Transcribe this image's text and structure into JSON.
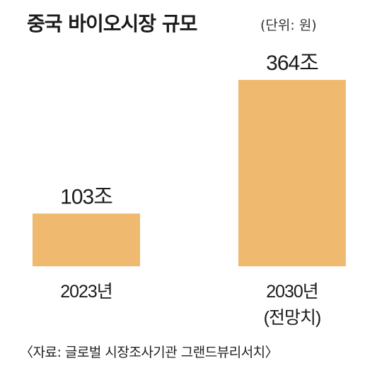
{
  "header": {
    "title": "중국 바이오시장 규모",
    "unit": "(단위: 원)"
  },
  "chart_data": {
    "type": "bar",
    "categories": [
      "2023년",
      "2030년"
    ],
    "category_notes": [
      "",
      "(전망치)"
    ],
    "values": [
      103,
      364
    ],
    "value_labels": [
      "103조",
      "364조"
    ],
    "value_unit": "조",
    "ylim": [
      0,
      400
    ],
    "bar_color": "#efb96f",
    "grid": false,
    "title": "중국 바이오시장 규모",
    "xlabel": "",
    "ylabel": ""
  },
  "footer": {
    "source": "〈자료: 글로벌 시장조사기관 그랜드뷰리서치〉"
  }
}
